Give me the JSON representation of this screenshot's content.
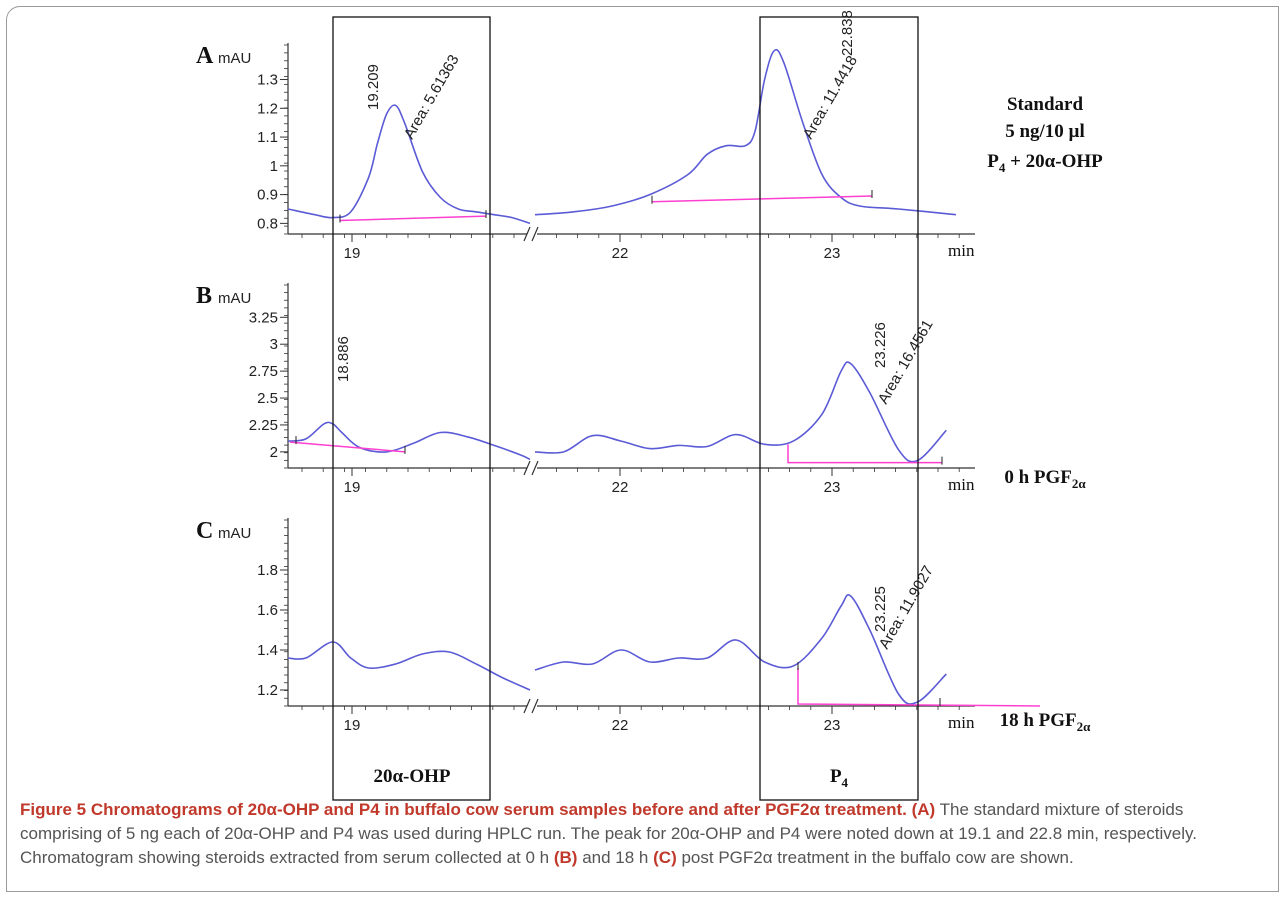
{
  "colors": {
    "trace": "#5b5bd6",
    "baseline": "#ff3fd0",
    "axis": "#333333",
    "caption_accent": "#c0392b",
    "caption_text": "#555555"
  },
  "chart_data": [
    {
      "panel": "A",
      "type": "line",
      "ylabel": "mAU",
      "xlabel": "min",
      "yticks": [
        0.8,
        0.9,
        1,
        1.1,
        1.2,
        1.3
      ],
      "ytick_labels": [
        "0.8",
        "0.9",
        "1",
        "1.1",
        "1.2",
        "1.3"
      ],
      "ylim": [
        0.77,
        1.42
      ],
      "xticks": [
        19,
        22,
        23
      ],
      "side_label": [
        "Standard",
        "5 ng/10 µl",
        "P4 + 20α-OHP"
      ],
      "peaks": [
        {
          "time_label": "19.209",
          "area_label": "Area: 5.61363"
        },
        {
          "time_label": "22.838",
          "area_label": "Area: 11.4418"
        }
      ],
      "series_left": {
        "x": [
          18.65,
          18.8,
          18.9,
          19.0,
          19.1,
          19.15,
          19.2,
          19.25,
          19.3,
          19.4,
          19.5,
          19.6,
          19.7,
          19.8,
          19.9,
          20.0
        ],
        "y": [
          0.85,
          0.83,
          0.82,
          0.84,
          0.96,
          1.08,
          1.18,
          1.21,
          1.15,
          0.98,
          0.89,
          0.85,
          0.84,
          0.83,
          0.82,
          0.8
        ]
      },
      "series_right": {
        "x": [
          21.6,
          21.8,
          22.0,
          22.2,
          22.4,
          22.5,
          22.6,
          22.7,
          22.75,
          22.8,
          22.85,
          22.9,
          23.0,
          23.1,
          23.2,
          23.3,
          23.5,
          23.8
        ],
        "y": [
          0.83,
          0.84,
          0.86,
          0.9,
          0.97,
          1.04,
          1.07,
          1.07,
          1.12,
          1.3,
          1.4,
          1.36,
          1.15,
          0.97,
          0.89,
          0.86,
          0.85,
          0.83
        ]
      }
    },
    {
      "panel": "B",
      "type": "line",
      "ylabel": "mAU",
      "xlabel": "min",
      "yticks": [
        2,
        2.25,
        2.5,
        2.75,
        3,
        3.25
      ],
      "ytick_labels": [
        "2",
        "2.25",
        "2.5",
        "2.75",
        "3",
        "3.25"
      ],
      "ylim": [
        1.85,
        3.55
      ],
      "xticks": [
        19,
        22,
        23
      ],
      "side_label": [
        "0 h PGF2α"
      ],
      "peaks": [
        {
          "time_label": "18.886",
          "area_label": ""
        },
        {
          "time_label": "23.226",
          "area_label": "Area: 16.4561"
        }
      ],
      "series_left": {
        "x": [
          18.65,
          18.75,
          18.85,
          18.9,
          18.95,
          19.05,
          19.2,
          19.35,
          19.5,
          19.65,
          19.8,
          19.95,
          20.0
        ],
        "y": [
          2.1,
          2.12,
          2.26,
          2.26,
          2.18,
          2.04,
          2.0,
          2.08,
          2.18,
          2.14,
          2.06,
          1.97,
          1.93
        ]
      },
      "series_right": {
        "x": [
          21.6,
          21.75,
          21.9,
          22.05,
          22.2,
          22.35,
          22.5,
          22.65,
          22.8,
          22.95,
          23.1,
          23.2,
          23.25,
          23.35,
          23.5,
          23.6,
          23.75
        ],
        "y": [
          2.0,
          2.0,
          2.15,
          2.1,
          2.03,
          2.06,
          2.05,
          2.16,
          2.07,
          2.1,
          2.35,
          2.75,
          2.82,
          2.55,
          2.02,
          1.92,
          2.2
        ]
      }
    },
    {
      "panel": "C",
      "type": "line",
      "ylabel": "mAU",
      "xlabel": "min",
      "yticks": [
        1.2,
        1.4,
        1.6,
        1.8
      ],
      "ytick_labels": [
        "1.2",
        "1.4",
        "1.6",
        "1.8"
      ],
      "ylim": [
        1.12,
        2.05
      ],
      "xticks": [
        19,
        22,
        23
      ],
      "side_label": [
        "18 h PGF2α"
      ],
      "peaks": [
        {
          "time_label": "23.225",
          "area_label": "Area: 11.9027"
        }
      ],
      "series_left": {
        "x": [
          18.65,
          18.75,
          18.9,
          19.0,
          19.1,
          19.25,
          19.4,
          19.55,
          19.7,
          19.85,
          20.0
        ],
        "y": [
          1.36,
          1.36,
          1.44,
          1.36,
          1.31,
          1.33,
          1.38,
          1.39,
          1.33,
          1.26,
          1.2
        ]
      },
      "series_right": {
        "x": [
          21.6,
          21.75,
          21.9,
          22.05,
          22.2,
          22.35,
          22.5,
          22.65,
          22.8,
          22.95,
          23.1,
          23.2,
          23.25,
          23.35,
          23.5,
          23.6,
          23.75
        ],
        "y": [
          1.3,
          1.34,
          1.33,
          1.4,
          1.34,
          1.36,
          1.36,
          1.45,
          1.34,
          1.32,
          1.46,
          1.62,
          1.67,
          1.5,
          1.18,
          1.14,
          1.28
        ]
      }
    }
  ],
  "boxes": {
    "left_label": "20α-OHP",
    "right_label": "P4"
  },
  "caption": {
    "title": "Figure 5 Chromatograms of 20α-OHP and P4 in buffalo cow serum samples before and after PGF2α treatment.",
    "a_label": "(A)",
    "a_text": "The standard mixture of steroids comprising of 5 ng each of 20α-OHP and P4 was used during HPLC run. The peak for 20α-OHP and P4 were noted down at 19.1 and 22.8 min, respectively. Chromatogram showing steroids extracted from serum collected at 0 h",
    "b_label": "(B)",
    "mid_text": "and 18 h",
    "c_label": "(C)",
    "end_text": "post PGF2α treatment in the buffalo cow are shown."
  }
}
